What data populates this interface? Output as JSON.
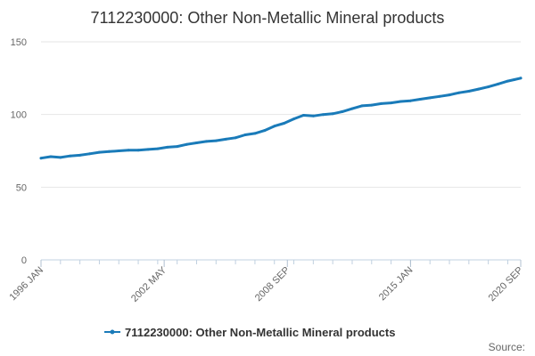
{
  "chart_data": {
    "type": "line",
    "title": "7112230000: Other Non-Metallic Mineral products",
    "xlabel": "",
    "ylabel": "",
    "ylim": [
      0,
      150
    ],
    "y_ticks": [
      0,
      50,
      100,
      150
    ],
    "x_tick_labels": [
      "1996 JAN",
      "2002 MAY",
      "2008 SEP",
      "2015 JAN",
      "2020 SEP"
    ],
    "x_tick_values": [
      "1996-01",
      "2002-05",
      "2008-09",
      "2015-01",
      "2020-09"
    ],
    "x_range": [
      "1996-01",
      "2020-09"
    ],
    "grid": true,
    "legend_position": "bottom",
    "series": [
      {
        "name": "7112230000: Other Non-Metallic Mineral products",
        "color": "#1a7bb9",
        "points": [
          [
            "1996-01",
            70
          ],
          [
            "1996-07",
            71
          ],
          [
            "1997-01",
            70.5
          ],
          [
            "1997-07",
            71.5
          ],
          [
            "1998-01",
            72
          ],
          [
            "1998-07",
            73
          ],
          [
            "1999-01",
            74
          ],
          [
            "1999-07",
            74.5
          ],
          [
            "2000-01",
            75
          ],
          [
            "2000-07",
            75.5
          ],
          [
            "2001-01",
            75.5
          ],
          [
            "2001-07",
            76
          ],
          [
            "2002-01",
            76.5
          ],
          [
            "2002-07",
            77.5
          ],
          [
            "2003-01",
            78
          ],
          [
            "2003-07",
            79.5
          ],
          [
            "2004-01",
            80.5
          ],
          [
            "2004-07",
            81.5
          ],
          [
            "2005-01",
            82
          ],
          [
            "2005-07",
            83
          ],
          [
            "2006-01",
            84
          ],
          [
            "2006-07",
            86
          ],
          [
            "2007-01",
            87
          ],
          [
            "2007-07",
            89
          ],
          [
            "2008-01",
            92
          ],
          [
            "2008-07",
            94
          ],
          [
            "2009-01",
            97
          ],
          [
            "2009-07",
            99.5
          ],
          [
            "2010-01",
            99
          ],
          [
            "2010-07",
            100
          ],
          [
            "2011-01",
            100.5
          ],
          [
            "2011-07",
            102
          ],
          [
            "2012-01",
            104
          ],
          [
            "2012-07",
            106
          ],
          [
            "2013-01",
            106.5
          ],
          [
            "2013-07",
            107.5
          ],
          [
            "2014-01",
            108
          ],
          [
            "2014-07",
            109
          ],
          [
            "2015-01",
            109.5
          ],
          [
            "2015-07",
            110.5
          ],
          [
            "2016-01",
            111.5
          ],
          [
            "2016-07",
            112.5
          ],
          [
            "2017-01",
            113.5
          ],
          [
            "2017-07",
            115
          ],
          [
            "2018-01",
            116
          ],
          [
            "2018-07",
            117.5
          ],
          [
            "2019-01",
            119
          ],
          [
            "2019-07",
            121
          ],
          [
            "2020-01",
            123
          ],
          [
            "2020-05",
            124
          ],
          [
            "2020-09",
            125
          ]
        ]
      }
    ]
  },
  "footer": {
    "source_label": "Source:"
  }
}
